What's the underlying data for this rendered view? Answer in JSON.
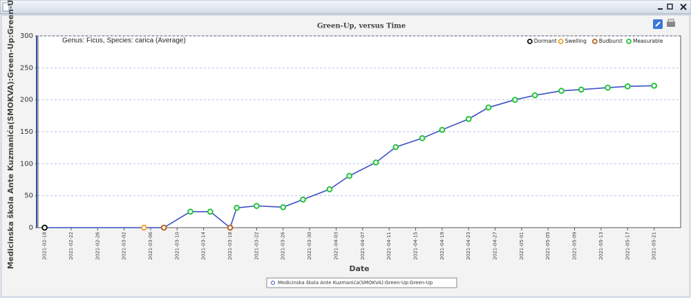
{
  "chart_data": {
    "type": "line",
    "title": "Green-Up, versus Time",
    "subtitle": "Genus: Ficus, Species: carica (Average)",
    "xlabel": "Date",
    "ylabel": "Medicinska škola Ante Kuzmanića(SMOKVA):Green-Up:Green-Up",
    "xlim": [
      "2021-02-17",
      "2021-05-25"
    ],
    "xticks": [
      "2021-02-18",
      "2021-02-22",
      "2021-02-26",
      "2021-03-02",
      "2021-03-06",
      "2021-03-10",
      "2021-03-14",
      "2021-03-18",
      "2021-03-22",
      "2021-03-26",
      "2021-03-30",
      "2021-04-03",
      "2021-04-07",
      "2021-04-11",
      "2021-04-15",
      "2021-04-19",
      "2021-04-23",
      "2021-04-27",
      "2021-05-01",
      "2021-05-05",
      "2021-05-09",
      "2021-05-13",
      "2021-05-17",
      "2021-05-21"
    ],
    "ylim": [
      0,
      300
    ],
    "yticks": [
      0,
      50,
      100,
      150,
      200,
      250,
      300
    ],
    "grid": true,
    "legend": "top-right",
    "stages": [
      {
        "name": "Dormant",
        "color": "#111111"
      },
      {
        "name": "Swelling",
        "color": "#f0a030"
      },
      {
        "name": "Budburst",
        "color": "#b8621a"
      },
      {
        "name": "Measurable",
        "color": "#22c43a"
      }
    ],
    "series": [
      {
        "name": "Medicinska škola Ante Kuzmanića(SMOKVA):Green-Up:Green-Up",
        "color": "#3b4fc4",
        "x": [
          "2021-02-18",
          "2021-03-05",
          "2021-03-08",
          "2021-03-12",
          "2021-03-15",
          "2021-03-18",
          "2021-03-19",
          "2021-03-22",
          "2021-03-26",
          "2021-03-29",
          "2021-04-02",
          "2021-04-05",
          "2021-04-09",
          "2021-04-12",
          "2021-04-16",
          "2021-04-19",
          "2021-04-23",
          "2021-04-26",
          "2021-04-30",
          "2021-05-03",
          "2021-05-07",
          "2021-05-10",
          "2021-05-14",
          "2021-05-17",
          "2021-05-21"
        ],
        "values": [
          0,
          0,
          0,
          25,
          25,
          0,
          31,
          34,
          32,
          44,
          60,
          81,
          102,
          126,
          140,
          153,
          170,
          188,
          200,
          207,
          214,
          216,
          219,
          221,
          222
        ],
        "stages": [
          0,
          1,
          2,
          3,
          3,
          2,
          3,
          3,
          3,
          3,
          3,
          3,
          3,
          3,
          3,
          3,
          3,
          3,
          3,
          3,
          3,
          3,
          3,
          3,
          3
        ]
      }
    ]
  }
}
